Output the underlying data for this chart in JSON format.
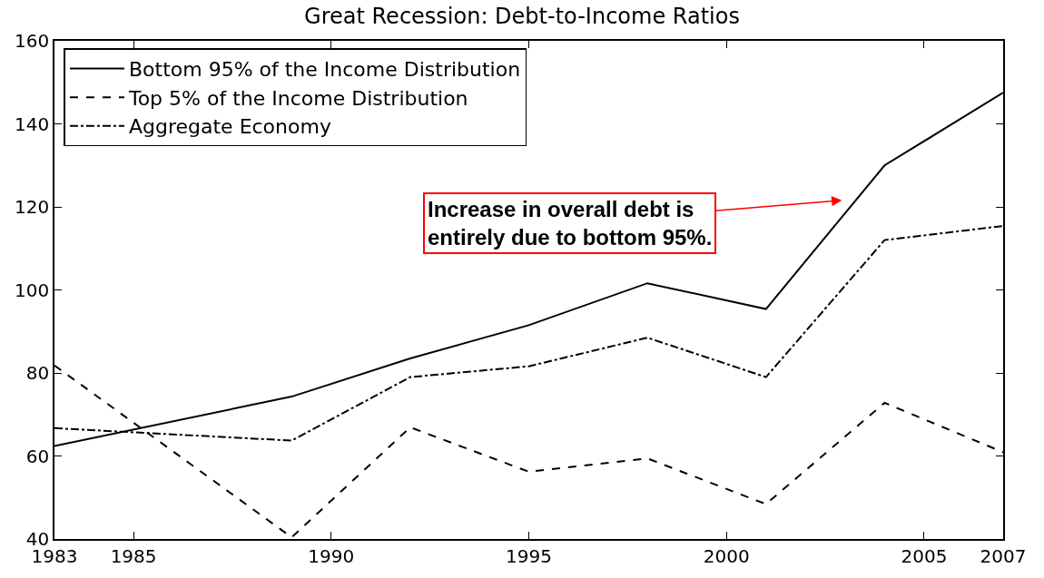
{
  "chart_data": {
    "type": "line",
    "title": "Great Recession: Debt-to-Income Ratios",
    "x": [
      1983,
      1989,
      1992,
      1995,
      1998,
      2001,
      2004,
      2007
    ],
    "series": [
      {
        "name": "Bottom 95% of the Income Distribution",
        "color": "#000000",
        "line_style": "solid",
        "values": [
          62.4,
          74.3,
          83.5,
          91.5,
          101.6,
          95.4,
          130,
          147.5
        ]
      },
      {
        "name": "Top 5% of the Income Distribution",
        "color": "#000000",
        "line_style": "dashed",
        "values": [
          81.8,
          40.4,
          66.9,
          56.2,
          59.4,
          48.4,
          72.8,
          60.9
        ]
      },
      {
        "name": "Aggregate Economy",
        "color": "#000000",
        "line_style": "dashdot",
        "values": [
          66.7,
          63.7,
          79,
          81.6,
          88.5,
          79,
          112,
          115.4
        ]
      }
    ],
    "xlim": [
      1983,
      2007
    ],
    "xticks": [
      1983,
      1985,
      1990,
      1995,
      2000,
      2005,
      2007
    ],
    "ylim": [
      40,
      160
    ],
    "yticks": [
      40,
      60,
      80,
      100,
      120,
      140,
      160
    ],
    "legend": "top left",
    "marker": "none",
    "annotations": [
      "Increase in overall debt is\nentirely due to bottom 95%."
    ]
  }
}
